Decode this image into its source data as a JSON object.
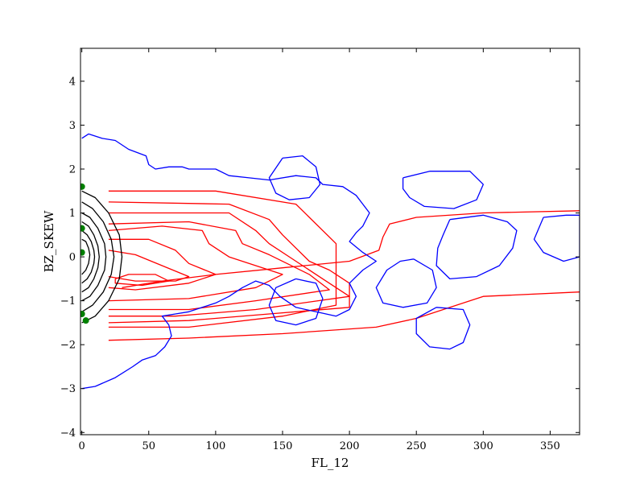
{
  "chart_data": {
    "type": "contour",
    "title": "",
    "xlabel": "FL_12",
    "ylabel": "BZ_SKEW",
    "xlim": [
      -1,
      372
    ],
    "ylim": [
      -4.05,
      4.75
    ],
    "x_ticks": [
      0,
      50,
      100,
      150,
      200,
      250,
      300,
      350
    ],
    "y_ticks": [
      -4,
      -3,
      -2,
      -1,
      0,
      1,
      2,
      3,
      4
    ],
    "grid": false,
    "legend": "none",
    "colors": {
      "red": "#ff0000",
      "blue": "#0000ff",
      "black": "#000000",
      "green": "#008000"
    },
    "series": [
      {
        "color": "#ff0000",
        "contours": [
          [
            [
              372,
              1.05
            ],
            [
              300,
              1.0
            ],
            [
              250,
              0.9
            ],
            [
              230,
              0.75
            ],
            [
              225,
              0.45
            ],
            [
              222,
              0.15
            ],
            [
              200,
              -0.1
            ],
            [
              150,
              -0.25
            ],
            [
              100,
              -0.4
            ],
            [
              60,
              -0.55
            ],
            [
              30,
              -0.7
            ]
          ],
          [
            [
              372,
              -0.8
            ],
            [
              300,
              -0.9
            ],
            [
              250,
              -1.4
            ],
            [
              220,
              -1.6
            ],
            [
              150,
              -1.75
            ],
            [
              80,
              -1.85
            ],
            [
              20,
              -1.9
            ]
          ],
          [
            [
              20,
              1.5
            ],
            [
              100,
              1.5
            ],
            [
              160,
              1.2
            ],
            [
              190,
              0.3
            ],
            [
              190,
              -0.3
            ],
            [
              190,
              -1.1
            ],
            [
              150,
              -1.35
            ],
            [
              80,
              -1.6
            ],
            [
              20,
              -1.6
            ]
          ],
          [
            [
              20,
              1.25
            ],
            [
              110,
              1.2
            ],
            [
              140,
              0.85
            ],
            [
              150,
              0.5
            ],
            [
              170,
              -0.1
            ],
            [
              185,
              -0.3
            ],
            [
              200,
              -0.6
            ],
            [
              200,
              -1.15
            ],
            [
              140,
              -1.3
            ],
            [
              80,
              -1.45
            ],
            [
              20,
              -1.5
            ]
          ],
          [
            [
              20,
              1.0
            ],
            [
              110,
              1.0
            ],
            [
              130,
              0.6
            ],
            [
              140,
              0.3
            ],
            [
              160,
              -0.1
            ],
            [
              180,
              -0.5
            ],
            [
              200,
              -0.9
            ],
            [
              130,
              -1.2
            ],
            [
              70,
              -1.35
            ],
            [
              20,
              -1.35
            ]
          ],
          [
            [
              20,
              0.75
            ],
            [
              80,
              0.8
            ],
            [
              115,
              0.6
            ],
            [
              120,
              0.3
            ],
            [
              140,
              0.05
            ],
            [
              170,
              -0.4
            ],
            [
              185,
              -0.75
            ],
            [
              130,
              -1.0
            ],
            [
              80,
              -1.2
            ],
            [
              20,
              -1.2
            ]
          ],
          [
            [
              20,
              0.6
            ],
            [
              60,
              0.7
            ],
            [
              90,
              0.6
            ],
            [
              95,
              0.3
            ],
            [
              110,
              0.0
            ],
            [
              150,
              -0.4
            ],
            [
              130,
              -0.7
            ],
            [
              80,
              -0.95
            ],
            [
              20,
              -1.0
            ]
          ],
          [
            [
              20,
              0.4
            ],
            [
              50,
              0.4
            ],
            [
              70,
              0.15
            ],
            [
              80,
              -0.15
            ],
            [
              100,
              -0.4
            ],
            [
              80,
              -0.6
            ],
            [
              40,
              -0.75
            ],
            [
              20,
              -0.7
            ]
          ],
          [
            [
              20,
              0.15
            ],
            [
              40,
              0.05
            ],
            [
              60,
              -0.2
            ],
            [
              80,
              -0.45
            ],
            [
              70,
              -0.55
            ],
            [
              40,
              -0.55
            ],
            [
              20,
              -0.45
            ]
          ],
          [
            [
              25,
              -0.5
            ],
            [
              35,
              -0.4
            ],
            [
              55,
              -0.4
            ],
            [
              65,
              -0.55
            ],
            [
              45,
              -0.65
            ],
            [
              25,
              -0.6
            ],
            [
              25,
              -0.5
            ]
          ]
        ]
      },
      {
        "color": "#0000ff",
        "contours": [
          [
            [
              0,
              2.7
            ],
            [
              5,
              2.8
            ],
            [
              15,
              2.7
            ],
            [
              25,
              2.65
            ],
            [
              35,
              2.45
            ],
            [
              48,
              2.3
            ],
            [
              50,
              2.1
            ],
            [
              55,
              2.0
            ],
            [
              65,
              2.05
            ],
            [
              75,
              2.05
            ],
            [
              80,
              2.0
            ],
            [
              90,
              2.0
            ],
            [
              100,
              2.0
            ],
            [
              110,
              1.85
            ],
            [
              125,
              1.8
            ],
            [
              140,
              1.75
            ],
            [
              160,
              1.85
            ],
            [
              175,
              1.8
            ],
            [
              180,
              1.65
            ],
            [
              195,
              1.6
            ],
            [
              205,
              1.4
            ],
            [
              210,
              1.2
            ],
            [
              215,
              1.0
            ],
            [
              210,
              0.7
            ],
            [
              205,
              0.55
            ],
            [
              200,
              0.35
            ],
            [
              210,
              0.1
            ],
            [
              220,
              -0.1
            ],
            [
              210,
              -0.3
            ],
            [
              200,
              -0.6
            ],
            [
              205,
              -0.9
            ],
            [
              200,
              -1.2
            ],
            [
              190,
              -1.35
            ],
            [
              175,
              -1.25
            ],
            [
              160,
              -1.15
            ],
            [
              148,
              -0.9
            ],
            [
              140,
              -0.65
            ],
            [
              130,
              -0.55
            ],
            [
              120,
              -0.7
            ],
            [
              110,
              -0.9
            ],
            [
              100,
              -1.05
            ],
            [
              90,
              -1.15
            ],
            [
              80,
              -1.25
            ],
            [
              70,
              -1.3
            ],
            [
              60,
              -1.35
            ],
            [
              65,
              -1.55
            ],
            [
              67,
              -1.8
            ],
            [
              62,
              -2.05
            ],
            [
              55,
              -2.25
            ],
            [
              45,
              -2.35
            ],
            [
              38,
              -2.5
            ],
            [
              25,
              -2.75
            ],
            [
              10,
              -2.95
            ],
            [
              0,
              -3.0
            ]
          ],
          [
            [
              240,
              1.8
            ],
            [
              260,
              1.95
            ],
            [
              290,
              1.95
            ],
            [
              300,
              1.65
            ],
            [
              295,
              1.3
            ],
            [
              278,
              1.1
            ],
            [
              256,
              1.15
            ],
            [
              245,
              1.35
            ],
            [
              240,
              1.55
            ],
            [
              240,
              1.8
            ]
          ],
          [
            [
              275,
              0.85
            ],
            [
              300,
              0.95
            ],
            [
              318,
              0.8
            ],
            [
              325,
              0.6
            ],
            [
              322,
              0.2
            ],
            [
              312,
              -0.2
            ],
            [
              295,
              -0.45
            ],
            [
              275,
              -0.5
            ],
            [
              265,
              -0.2
            ],
            [
              266,
              0.2
            ],
            [
              270,
              0.5
            ],
            [
              275,
              0.85
            ]
          ],
          [
            [
              345,
              0.9
            ],
            [
              362,
              0.95
            ],
            [
              372,
              0.95
            ],
            [
              372,
              0.0
            ],
            [
              360,
              -0.1
            ],
            [
              345,
              0.1
            ],
            [
              338,
              0.4
            ],
            [
              345,
              0.9
            ]
          ],
          [
            [
              265,
              -1.15
            ],
            [
              285,
              -1.2
            ],
            [
              290,
              -1.55
            ],
            [
              285,
              -1.95
            ],
            [
              275,
              -2.1
            ],
            [
              260,
              -2.05
            ],
            [
              250,
              -1.75
            ],
            [
              250,
              -1.4
            ],
            [
              265,
              -1.15
            ]
          ],
          [
            [
              248,
              -0.05
            ],
            [
              262,
              -0.3
            ],
            [
              265,
              -0.7
            ],
            [
              258,
              -1.05
            ],
            [
              240,
              -1.15
            ],
            [
              225,
              -1.05
            ],
            [
              220,
              -0.7
            ],
            [
              228,
              -0.3
            ],
            [
              238,
              -0.1
            ],
            [
              248,
              -0.05
            ]
          ]
        ]
      },
      {
        "color": "#0000ff",
        "contours": [
          [
            [
              150,
              2.25
            ],
            [
              165,
              2.3
            ],
            [
              175,
              2.05
            ],
            [
              178,
              1.65
            ],
            [
              170,
              1.35
            ],
            [
              155,
              1.3
            ],
            [
              145,
              1.45
            ],
            [
              140,
              1.8
            ],
            [
              150,
              2.25
            ]
          ],
          [
            [
              160,
              -0.5
            ],
            [
              175,
              -0.6
            ],
            [
              180,
              -0.95
            ],
            [
              175,
              -1.4
            ],
            [
              160,
              -1.55
            ],
            [
              145,
              -1.45
            ],
            [
              140,
              -1.1
            ],
            [
              145,
              -0.7
            ],
            [
              160,
              -0.5
            ]
          ]
        ]
      },
      {
        "color": "#000000",
        "contours": [
          [
            [
              0,
              1.5
            ],
            [
              10,
              1.35
            ],
            [
              20,
              1.0
            ],
            [
              28,
              0.5
            ],
            [
              30,
              0.0
            ],
            [
              28,
              -0.5
            ],
            [
              20,
              -1.0
            ],
            [
              10,
              -1.35
            ],
            [
              0,
              -1.5
            ]
          ],
          [
            [
              0,
              1.25
            ],
            [
              8,
              1.1
            ],
            [
              16,
              0.8
            ],
            [
              22,
              0.4
            ],
            [
              24,
              0.0
            ],
            [
              22,
              -0.4
            ],
            [
              16,
              -0.8
            ],
            [
              8,
              -1.1
            ],
            [
              0,
              -1.25
            ]
          ],
          [
            [
              0,
              1.0
            ],
            [
              6,
              0.9
            ],
            [
              12,
              0.65
            ],
            [
              17,
              0.3
            ],
            [
              18,
              0.0
            ],
            [
              17,
              -0.3
            ],
            [
              12,
              -0.65
            ],
            [
              6,
              -0.9
            ],
            [
              0,
              -1.0
            ]
          ],
          [
            [
              0,
              0.8
            ],
            [
              5,
              0.7
            ],
            [
              9,
              0.5
            ],
            [
              12,
              0.25
            ],
            [
              13,
              0.0
            ],
            [
              12,
              -0.25
            ],
            [
              9,
              -0.5
            ],
            [
              5,
              -0.7
            ],
            [
              0,
              -0.8
            ]
          ],
          [
            [
              0,
              0.6
            ],
            [
              4,
              0.5
            ],
            [
              7,
              0.35
            ],
            [
              9,
              0.15
            ],
            [
              9.5,
              0.0
            ],
            [
              9,
              -0.15
            ],
            [
              7,
              -0.35
            ],
            [
              4,
              -0.5
            ],
            [
              0,
              -0.6
            ]
          ],
          [
            [
              0,
              0.4
            ],
            [
              3,
              0.35
            ],
            [
              5,
              0.2
            ],
            [
              6,
              0.05
            ],
            [
              5,
              -0.15
            ],
            [
              3,
              -0.3
            ],
            [
              0,
              -0.4
            ]
          ]
        ]
      },
      {
        "type": "scatter",
        "color": "#008000",
        "x": [
          0,
          0,
          0,
          0,
          3
        ],
        "y": [
          1.6,
          0.65,
          0.1,
          -1.3,
          -1.45
        ]
      }
    ]
  }
}
